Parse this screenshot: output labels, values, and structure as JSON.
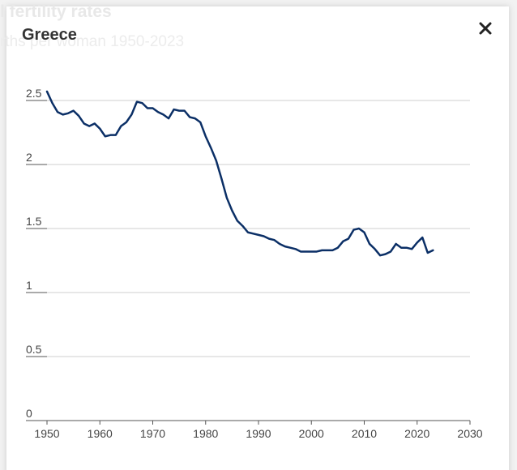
{
  "background": {
    "title": "l fertility rates",
    "subtitle": "rths per woman 1950-2023"
  },
  "chart_data": {
    "type": "line",
    "title": "Greece",
    "x": [
      1950,
      1951,
      1952,
      1953,
      1954,
      1955,
      1956,
      1957,
      1958,
      1959,
      1960,
      1961,
      1962,
      1963,
      1964,
      1965,
      1966,
      1967,
      1968,
      1969,
      1970,
      1971,
      1972,
      1973,
      1974,
      1975,
      1976,
      1977,
      1978,
      1979,
      1980,
      1981,
      1982,
      1983,
      1984,
      1985,
      1986,
      1987,
      1988,
      1989,
      1990,
      1991,
      1992,
      1993,
      1994,
      1995,
      1996,
      1997,
      1998,
      1999,
      2000,
      2001,
      2002,
      2003,
      2004,
      2005,
      2006,
      2007,
      2008,
      2009,
      2010,
      2011,
      2012,
      2013,
      2014,
      2015,
      2016,
      2017,
      2018,
      2019,
      2020,
      2021,
      2022,
      2023
    ],
    "series": [
      {
        "name": "Greece",
        "color": "#0b2f66",
        "values": [
          2.57,
          2.48,
          2.41,
          2.39,
          2.4,
          2.42,
          2.38,
          2.32,
          2.3,
          2.32,
          2.28,
          2.22,
          2.23,
          2.23,
          2.3,
          2.33,
          2.39,
          2.49,
          2.48,
          2.44,
          2.44,
          2.41,
          2.39,
          2.36,
          2.43,
          2.42,
          2.42,
          2.37,
          2.36,
          2.33,
          2.22,
          2.13,
          2.03,
          1.89,
          1.74,
          1.64,
          1.56,
          1.52,
          1.47,
          1.46,
          1.45,
          1.44,
          1.42,
          1.41,
          1.38,
          1.36,
          1.35,
          1.34,
          1.32,
          1.32,
          1.32,
          1.32,
          1.33,
          1.33,
          1.33,
          1.35,
          1.4,
          1.42,
          1.49,
          1.5,
          1.47,
          1.38,
          1.34,
          1.29,
          1.3,
          1.32,
          1.38,
          1.35,
          1.35,
          1.34,
          1.39,
          1.43,
          1.31,
          1.33
        ]
      }
    ],
    "xlim": [
      1950,
      2030
    ],
    "xticks": [
      1950,
      1960,
      1970,
      1980,
      1990,
      2000,
      2010,
      2020,
      2030
    ],
    "ylim": [
      0,
      2.5
    ],
    "yticks": [
      0,
      0.5,
      1,
      1.5,
      2,
      2.5
    ],
    "grid": true
  }
}
